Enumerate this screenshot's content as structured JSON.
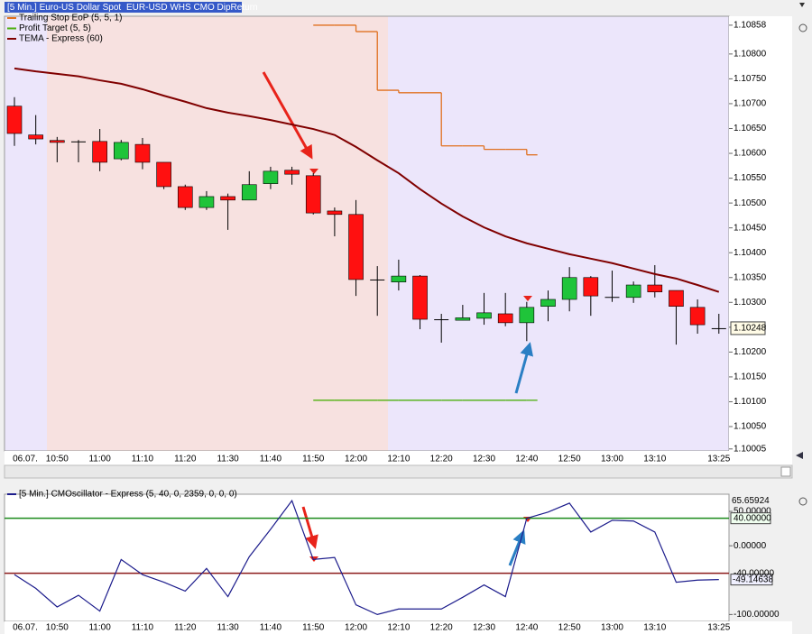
{
  "chart_data": [
    {
      "type": "candlestick",
      "title": "[5 Min.] Euro-US Dollar Spot",
      "subtitle": "EUR-USD WHS CMO DipReturn",
      "categories": [
        "06.07.",
        null,
        "10:50",
        null,
        "11:00",
        null,
        "11:10",
        null,
        "11:20",
        null,
        "11:30",
        null,
        "11:40",
        null,
        "11:50",
        null,
        "12:00",
        null,
        "12:10",
        null,
        "12:20",
        null,
        "12:30",
        null,
        "12:40",
        null,
        "12:50",
        null,
        "13:00",
        null,
        "13:10",
        null,
        null,
        "13:25"
      ],
      "open": [
        1.10695,
        1.10637,
        1.10626,
        1.10624,
        1.10624,
        1.10589,
        1.10618,
        1.10582,
        1.10533,
        1.10491,
        1.10513,
        1.10506,
        1.10539,
        1.10566,
        1.10555,
        1.10484,
        1.10477,
        1.10346,
        1.10341,
        1.10353,
        1.10266,
        1.10264,
        1.10268,
        1.10277,
        1.10259,
        1.10292,
        1.10306,
        1.1035,
        1.10311,
        1.1031,
        1.10335,
        1.10324,
        1.1029,
        1.10248
      ],
      "high": [
        1.10713,
        1.10677,
        1.10633,
        1.10627,
        1.10649,
        1.10627,
        1.10631,
        1.10582,
        1.10537,
        1.10524,
        1.10519,
        1.10564,
        1.10573,
        1.10573,
        1.1056,
        1.10491,
        1.10506,
        1.10373,
        1.10386,
        1.10355,
        1.10277,
        1.10295,
        1.10319,
        1.10319,
        1.10301,
        1.10324,
        1.10371,
        1.10353,
        1.10364,
        1.10342,
        1.10375,
        1.10324,
        1.10306,
        1.10277
      ],
      "low": [
        1.10615,
        1.10618,
        1.10582,
        1.10582,
        1.10564,
        1.10586,
        1.10568,
        1.10528,
        1.10486,
        1.10486,
        1.10446,
        1.10506,
        1.10528,
        1.10537,
        1.10477,
        1.10433,
        1.10313,
        1.10273,
        1.10324,
        1.10246,
        1.10219,
        1.10264,
        1.10255,
        1.10252,
        1.10222,
        1.10262,
        1.10282,
        1.10273,
        1.10301,
        1.10299,
        1.1031,
        1.10215,
        1.10237,
        1.10237
      ],
      "close": [
        1.1064,
        1.10629,
        1.10622,
        1.10624,
        1.10582,
        1.10622,
        1.10582,
        1.10533,
        1.10491,
        1.10513,
        1.10506,
        1.10537,
        1.10564,
        1.10558,
        1.1048,
        1.10477,
        1.10346,
        1.10346,
        1.10353,
        1.10266,
        1.10266,
        1.10269,
        1.10279,
        1.10259,
        1.1029,
        1.10306,
        1.1035,
        1.10313,
        1.10311,
        1.10335,
        1.10321,
        1.10292,
        1.10255,
        1.10248
      ],
      "up_color": "#1fc43a",
      "down_color": "#ff1010",
      "doji_color": "#000000",
      "series": [
        {
          "name": "Trailing Stop EoP  (5, 5, 1)",
          "color": "#e0701f",
          "style": "step",
          "values": [
            null,
            null,
            null,
            null,
            null,
            null,
            null,
            null,
            null,
            null,
            null,
            null,
            null,
            null,
            1.10858,
            1.10858,
            1.10845,
            1.10727,
            1.10722,
            1.10722,
            1.10615,
            1.10615,
            1.10608,
            1.10608,
            1.10597,
            null,
            null,
            null,
            null,
            null,
            null,
            null,
            null,
            null
          ]
        },
        {
          "name": "Profit Target  (5, 5)",
          "color": "#4caf0e",
          "style": "step",
          "values": [
            null,
            null,
            null,
            null,
            null,
            null,
            null,
            null,
            null,
            null,
            null,
            null,
            null,
            null,
            1.10103,
            1.10103,
            1.10103,
            1.10103,
            1.10103,
            1.10103,
            1.10103,
            1.10103,
            1.10103,
            1.10103,
            1.10103,
            null,
            null,
            null,
            null,
            null,
            null,
            null,
            null,
            null
          ]
        },
        {
          "name": "TEMA - Express  (60)",
          "color": "#800000",
          "style": "line",
          "values": [
            1.10771,
            1.10765,
            1.1076,
            1.10755,
            1.10747,
            1.1074,
            1.10729,
            1.10716,
            1.10704,
            1.10691,
            1.10682,
            1.10675,
            1.10667,
            1.10658,
            1.10649,
            1.10637,
            1.10613,
            1.10586,
            1.1056,
            1.10528,
            1.10499,
            1.10473,
            1.10451,
            1.10433,
            1.10419,
            1.10408,
            1.10397,
            1.10388,
            1.10379,
            1.10368,
            1.10357,
            1.10348,
            1.10335,
            1.10321
          ]
        }
      ],
      "ylim": [
        1.10001,
        1.10876
      ],
      "yticks": [
        1.10858,
        {
          "value": 1.108,
          "label": "1.10800"
        },
        {
          "value": 1.1075,
          "label": "1.10750"
        },
        {
          "value": 1.107,
          "label": "1.10700"
        },
        {
          "value": 1.1065,
          "label": "1.10650"
        },
        {
          "value": 1.106,
          "label": "1.10600"
        },
        {
          "value": 1.1055,
          "label": "1.10550"
        },
        {
          "value": 1.105,
          "label": "1.10500"
        },
        {
          "value": 1.1045,
          "label": "1.10450"
        },
        {
          "value": 1.104,
          "label": "1.10400"
        },
        {
          "value": 1.1035,
          "label": "1.10350"
        },
        {
          "value": 1.103,
          "label": "1.10300"
        },
        {
          "value": 1.1025,
          "label": "1.10250"
        },
        {
          "value": 1.102,
          "label": "1.10200"
        },
        {
          "value": 1.1015,
          "label": "1.10150"
        },
        {
          "value": 1.101,
          "label": "1.10100"
        },
        {
          "value": 1.1005,
          "label": "1.10050"
        },
        1.10005
      ]
    },
    {
      "type": "line",
      "series": [
        {
          "name": "[5 Min.] CMOscillator - Express  (5, 40, 0, 2359, 0, 0, 0)",
          "color": "#1c1c8c",
          "values": [
            -42,
            -62,
            -89,
            -72,
            -95,
            -20,
            -42,
            -53,
            -66,
            -33,
            -74,
            -16,
            24,
            65.65924,
            -20,
            -17,
            -86,
            -100,
            -92,
            -92,
            -92,
            -75,
            -57,
            -74,
            40,
            49,
            62,
            20,
            37,
            36,
            20,
            -53,
            -50,
            -49.14638
          ]
        }
      ],
      "levels": [
        {
          "value": 40,
          "label": "40.00000",
          "color": "#1a8a1a"
        },
        {
          "value": -40,
          "label": "-40.00000",
          "color": "#8b1a1a"
        }
      ],
      "ylim": [
        -110,
        75
      ],
      "yticks": [
        {
          "value": 50,
          "label": "50.00000"
        },
        {
          "value": 0,
          "label": "0.00000"
        },
        {
          "value": -100,
          "label": "-100.00000"
        }
      ]
    }
  ]
}
